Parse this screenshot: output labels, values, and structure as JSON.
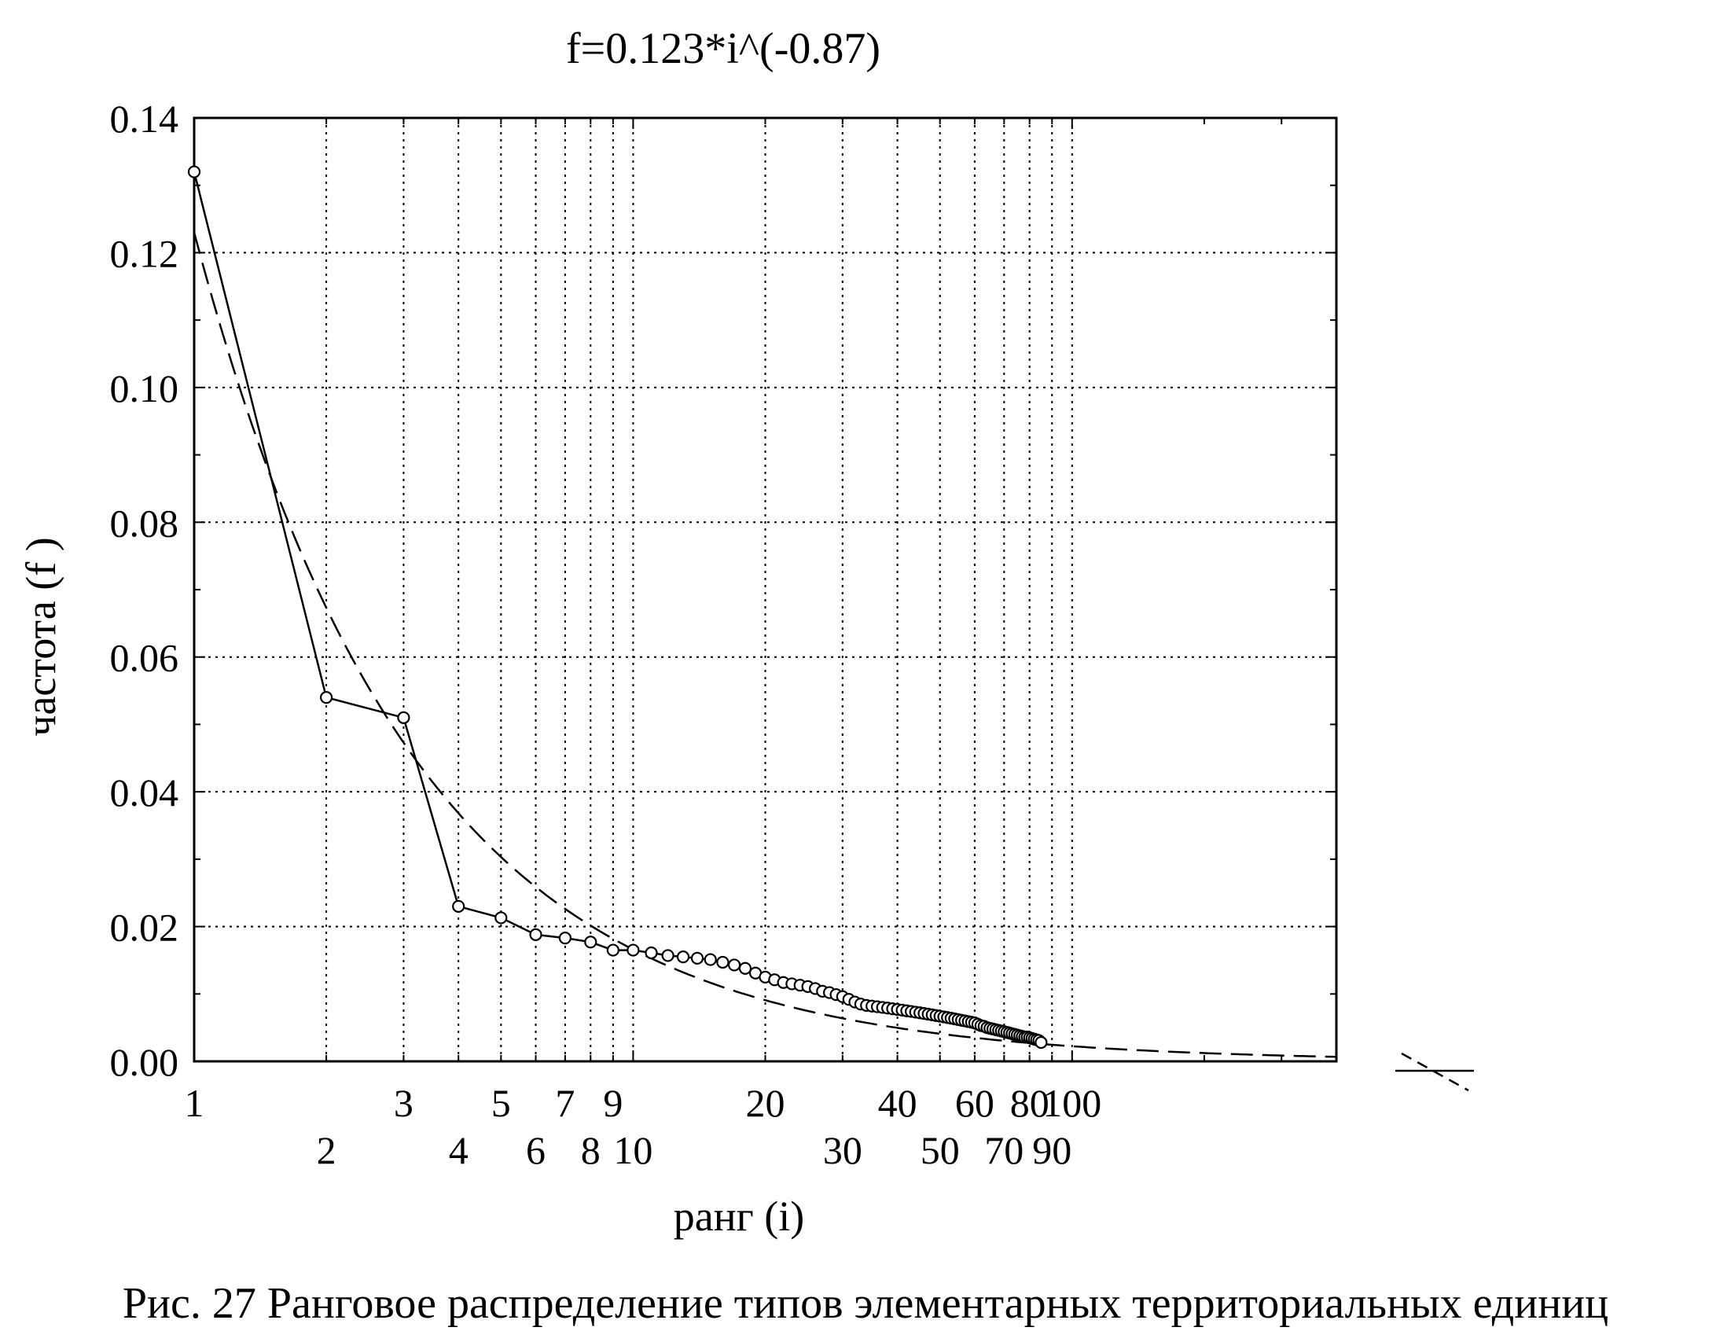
{
  "figure": {
    "caption": "Рис. 27  Ранговое распределение типов элементарных территориальных единиц"
  },
  "chart_data": {
    "type": "line",
    "title": "f=0.123*i^(-0.87)",
    "xlabel": "ранг (i)",
    "ylabel": "частота (f )",
    "x_scale": "log",
    "xlim": [
      1,
      400
    ],
    "ylim": [
      0,
      0.14
    ],
    "grid": true,
    "y_ticks": [
      "0.00",
      "0.02",
      "0.04",
      "0.06",
      "0.08",
      "0.10",
      "0.12",
      "0.14"
    ],
    "y_tick_values": [
      0,
      0.02,
      0.04,
      0.06,
      0.08,
      0.1,
      0.12,
      0.14
    ],
    "x_ticks_row1": [
      "1",
      "3",
      "5",
      "7",
      "9",
      "20",
      "40",
      "60",
      "80",
      "100"
    ],
    "x_ticks_row1_values": [
      1,
      3,
      5,
      7,
      9,
      20,
      40,
      60,
      80,
      100
    ],
    "x_ticks_row2": [
      "2",
      "4",
      "6",
      "8",
      "10",
      "30",
      "50",
      "70",
      "90"
    ],
    "x_ticks_row2_values": [
      2,
      4,
      6,
      8,
      10,
      30,
      50,
      70,
      90
    ],
    "series": [
      {
        "style": "solid line with circle markers",
        "x": [
          1,
          2,
          3,
          4,
          5,
          6,
          7,
          8,
          9,
          10,
          11,
          12,
          13,
          14,
          15,
          16,
          17,
          18,
          19,
          20,
          21,
          22,
          23,
          24,
          25,
          26,
          27,
          28,
          29,
          30,
          31,
          32,
          33,
          34,
          35,
          36,
          37,
          38,
          39,
          40,
          41,
          42,
          43,
          44,
          45,
          46,
          47,
          48,
          49,
          50,
          51,
          52,
          53,
          54,
          55,
          56,
          57,
          58,
          59,
          60,
          61,
          62,
          63,
          64,
          65,
          66,
          67,
          68,
          69,
          70,
          71,
          72,
          73,
          74,
          75,
          76,
          77,
          78,
          79,
          80,
          81,
          82,
          83,
          84,
          85
        ],
        "y": [
          0.132,
          0.054,
          0.051,
          0.023,
          0.0213,
          0.0188,
          0.0183,
          0.0177,
          0.0165,
          0.0165,
          0.0161,
          0.0157,
          0.0155,
          0.0153,
          0.0151,
          0.0147,
          0.0143,
          0.0138,
          0.0131,
          0.0125,
          0.0121,
          0.0117,
          0.0115,
          0.0113,
          0.0111,
          0.0108,
          0.0104,
          0.0102,
          0.0099,
          0.0096,
          0.0092,
          0.0088,
          0.0085,
          0.0083,
          0.0082,
          0.0081,
          0.008,
          0.0079,
          0.0078,
          0.0077,
          0.0076,
          0.0075,
          0.0074,
          0.0073,
          0.0072,
          0.0071,
          0.007,
          0.0069,
          0.0068,
          0.0067,
          0.0066,
          0.0065,
          0.0064,
          0.0063,
          0.0062,
          0.0061,
          0.006,
          0.0059,
          0.0058,
          0.0057,
          0.0055,
          0.0053,
          0.0052,
          0.005,
          0.0049,
          0.0048,
          0.0047,
          0.0046,
          0.0045,
          0.0044,
          0.0043,
          0.0042,
          0.0041,
          0.004,
          0.0039,
          0.0038,
          0.0037,
          0.0036,
          0.0036,
          0.0035,
          0.0034,
          0.0033,
          0.0032,
          0.0031,
          0.0028
        ]
      },
      {
        "style": "dashed fitted curve",
        "formula": "f=0.123*i^(-0.87)",
        "coefficient": 0.123,
        "exponent": -0.87,
        "x_range": [
          1,
          400
        ]
      }
    ],
    "legend": [
      {
        "style": "dashed"
      },
      {
        "style": "solid"
      }
    ]
  }
}
